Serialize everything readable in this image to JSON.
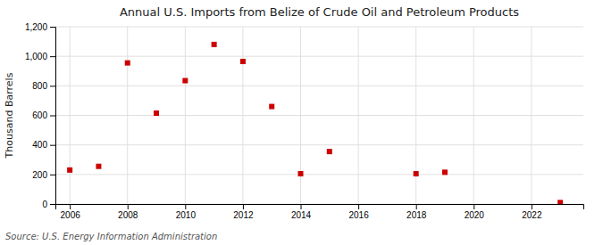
{
  "chart_data": {
    "type": "scatter",
    "title": "Annual U.S. Imports from Belize of Crude Oil and Petroleum Products",
    "ylabel": "Thousand Barrels",
    "source": "Source: U.S. Energy Information Administration",
    "x": [
      2006,
      2007,
      2008,
      2009,
      2010,
      2011,
      2012,
      2013,
      2014,
      2015,
      2018,
      2019,
      2023
    ],
    "values": [
      230,
      255,
      955,
      615,
      835,
      1080,
      965,
      660,
      205,
      355,
      205,
      215,
      10
    ],
    "color": "#cc0000",
    "marker": "square",
    "xlim": [
      2005.5,
      2023.8
    ],
    "ylim": [
      0,
      1200
    ],
    "xticks": [
      2006,
      2008,
      2010,
      2012,
      2014,
      2016,
      2018,
      2020,
      2022
    ],
    "yticks": [
      0,
      200,
      400,
      600,
      800,
      {
        "value": 1000,
        "label": "1,000"
      },
      {
        "value": 1200,
        "label": "1,200"
      }
    ],
    "grid": true
  }
}
